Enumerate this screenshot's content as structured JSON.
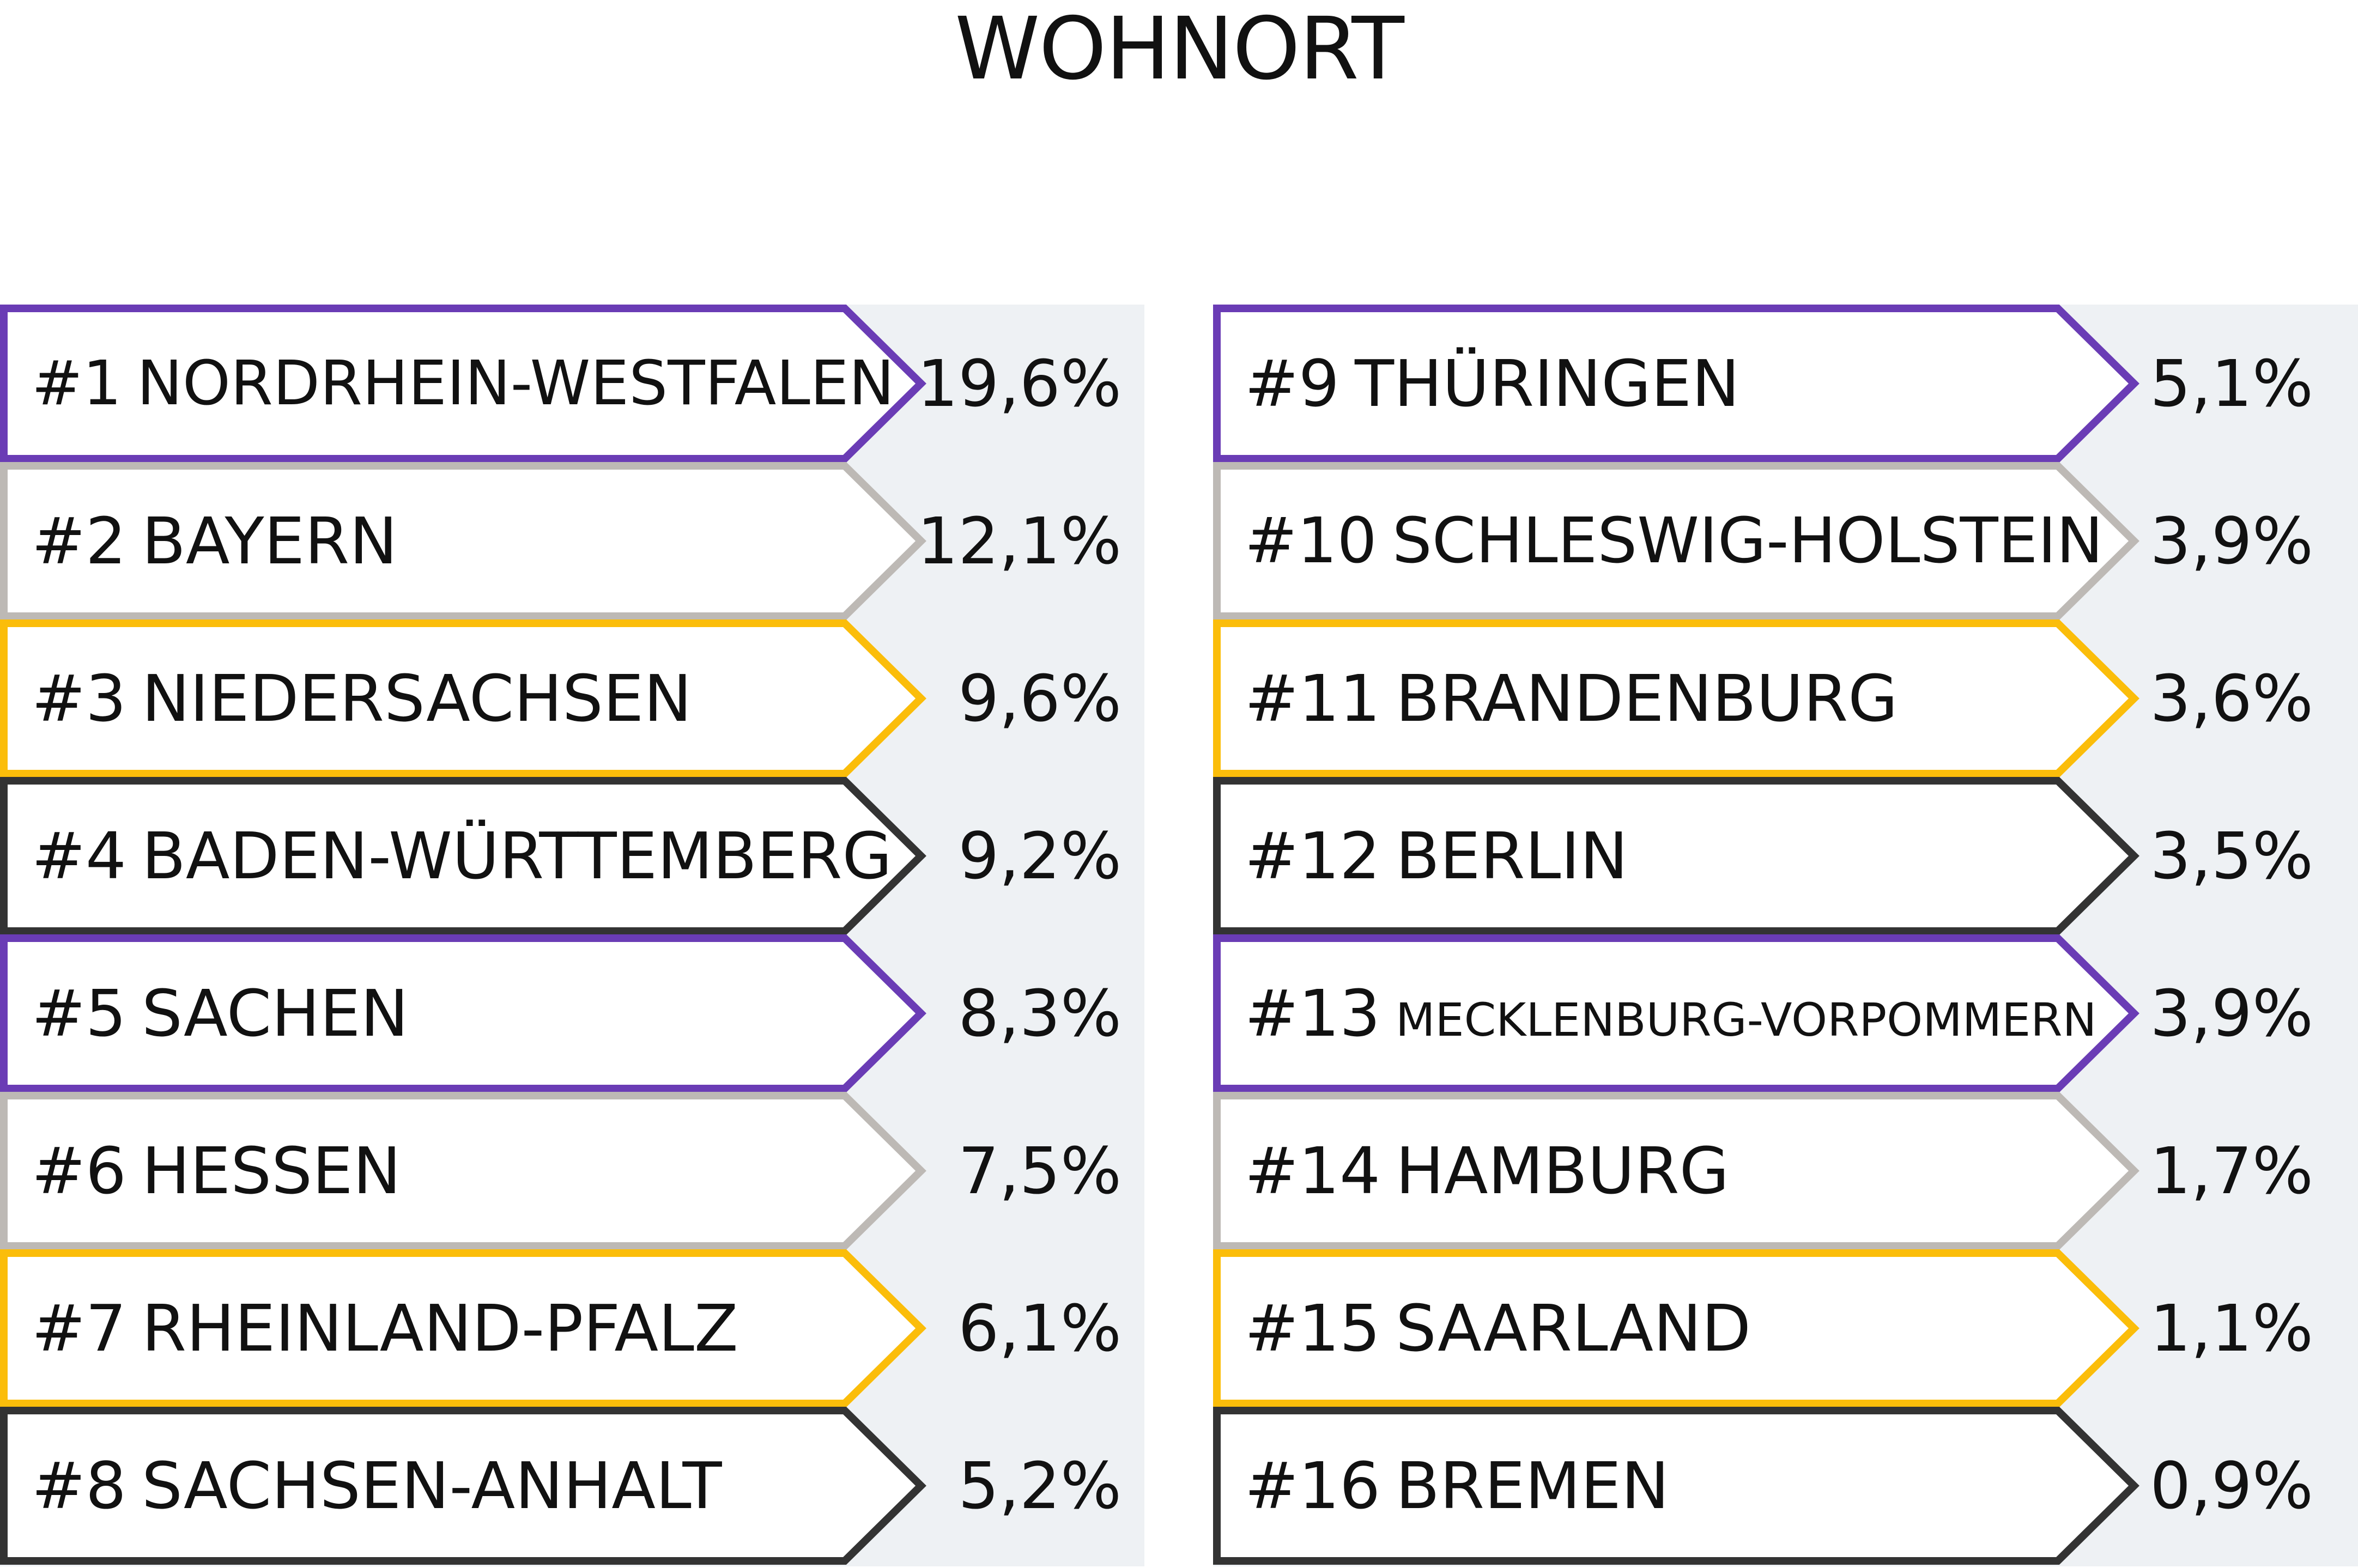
{
  "chart_data": {
    "type": "table",
    "title": "WOHNORT",
    "unit": "%",
    "rows": [
      {
        "rank": "#1",
        "name": "NORDRHEIN-WESTFALEN",
        "value_label": "19,6%",
        "value": 19.6,
        "color": "#6a3cb5"
      },
      {
        "rank": "#2",
        "name": "BAYERN",
        "value_label": "12,1%",
        "value": 12.1,
        "color": "#bdb9b5"
      },
      {
        "rank": "#3",
        "name": "NIEDERSACHSEN",
        "value_label": "9,6%",
        "value": 9.6,
        "color": "#fbbd0a"
      },
      {
        "rank": "#4",
        "name": "BADEN-WÜRTTEMBERG",
        "value_label": "9,2%",
        "value": 9.2,
        "color": "#333333"
      },
      {
        "rank": "#5",
        "name": "SACHEN",
        "value_label": "8,3%",
        "value": 8.3,
        "color": "#6a3cb5"
      },
      {
        "rank": "#6",
        "name": "HESSEN",
        "value_label": "7,5%",
        "value": 7.5,
        "color": "#bdb9b5"
      },
      {
        "rank": "#7",
        "name": "RHEINLAND-PFALZ",
        "value_label": "6,1%",
        "value": 6.1,
        "color": "#fbbd0a"
      },
      {
        "rank": "#8",
        "name": "SACHSEN-ANHALT",
        "value_label": "5,2%",
        "value": 5.2,
        "color": "#333333"
      },
      {
        "rank": "#9",
        "name": "THÜRINGEN",
        "value_label": "5,1%",
        "value": 5.1,
        "color": "#6a3cb5"
      },
      {
        "rank": "#10",
        "name": "SCHLESWIG-HOLSTEIN",
        "value_label": "3,9%",
        "value": 3.9,
        "color": "#bdb9b5"
      },
      {
        "rank": "#11",
        "name": "BRANDENBURG",
        "value_label": "3,6%",
        "value": 3.6,
        "color": "#fbbd0a"
      },
      {
        "rank": "#12",
        "name": "BERLIN",
        "value_label": "3,5%",
        "value": 3.5,
        "color": "#333333"
      },
      {
        "rank": "#13",
        "name": "MECKLENBURG-VORPOMMERN",
        "value_label": "3,9%",
        "value": 3.9,
        "color": "#6a3cb5",
        "small_name": true
      },
      {
        "rank": "#14",
        "name": "HAMBURG",
        "value_label": "1,7%",
        "value": 1.7,
        "color": "#bdb9b5"
      },
      {
        "rank": "#15",
        "name": "SAARLAND",
        "value_label": "1,1%",
        "value": 1.1,
        "color": "#fbbd0a"
      },
      {
        "rank": "#16",
        "name": "BREMEN",
        "value_label": "0,9%",
        "value": 0.9,
        "color": "#333333"
      }
    ],
    "background_color": "#eef1f4"
  }
}
